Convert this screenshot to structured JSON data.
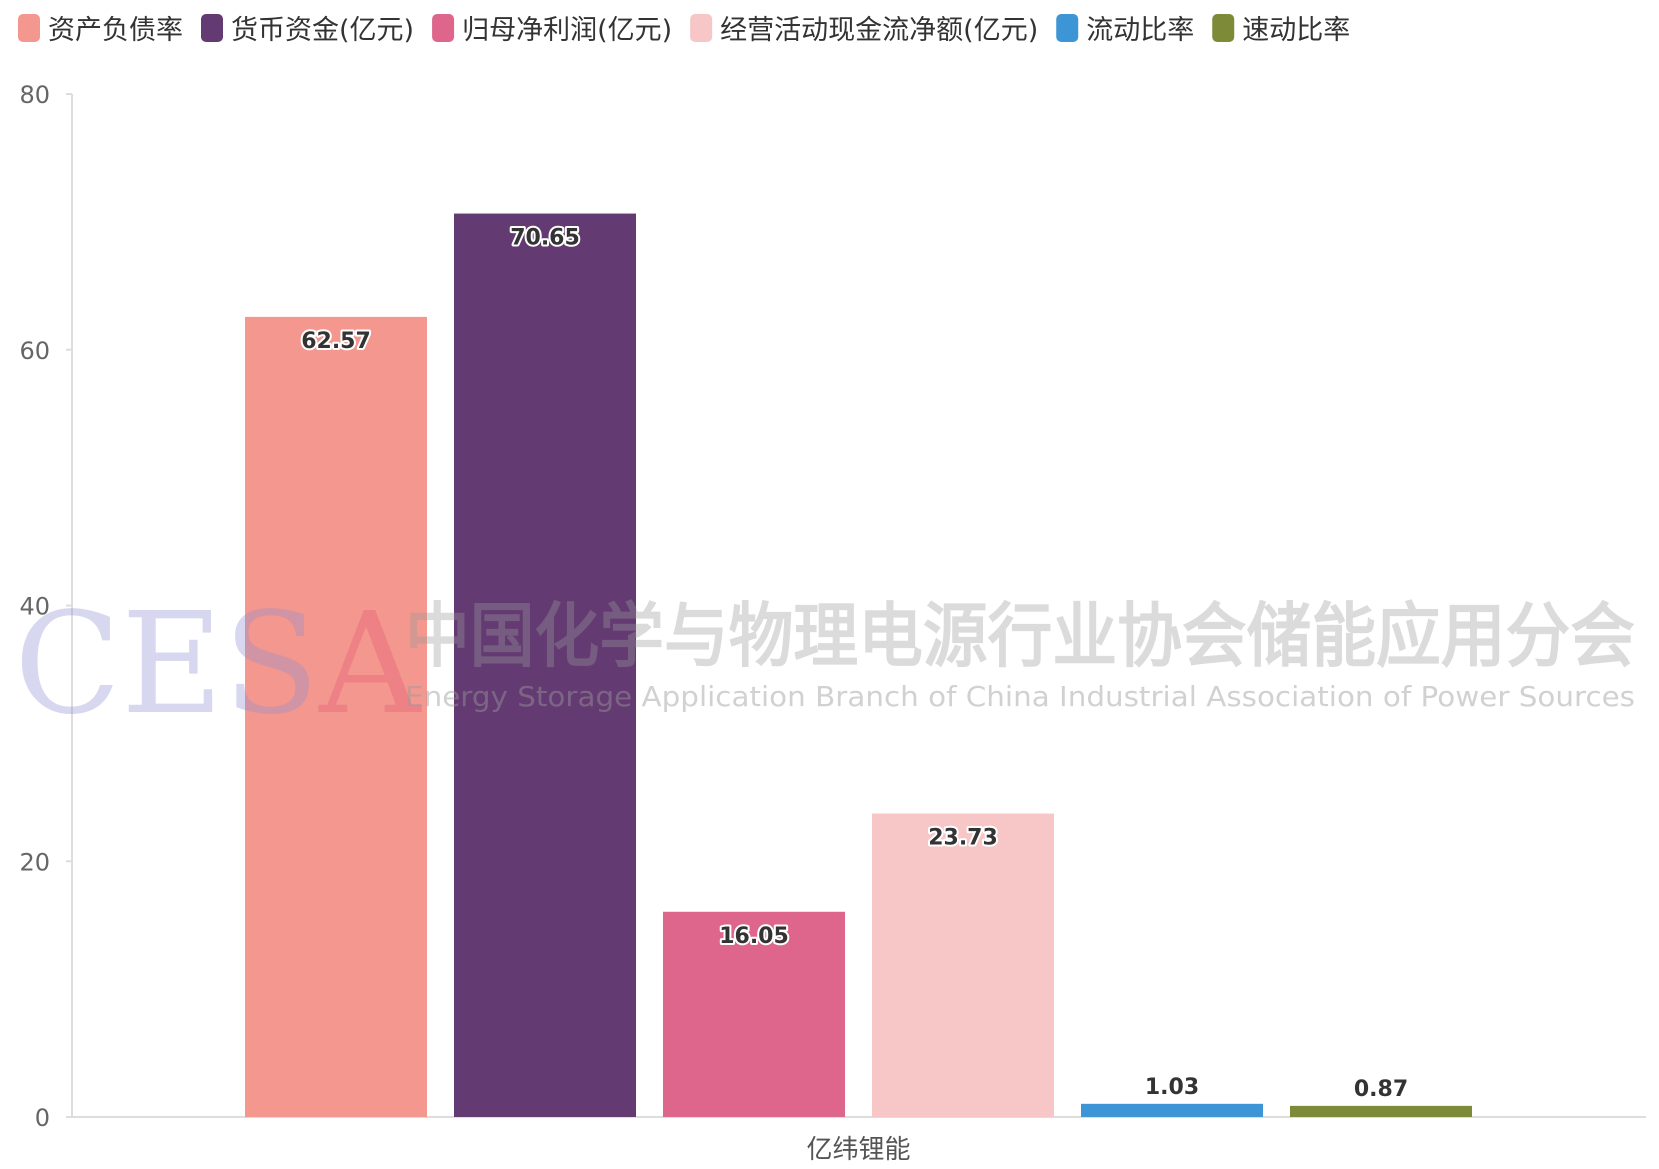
{
  "chart_data": {
    "type": "bar",
    "categories": [
      "亿纬锂能"
    ],
    "series": [
      {
        "name": "资产负债率",
        "values": [
          62.57
        ],
        "color": "#f4978e"
      },
      {
        "name": "货币资金(亿元)",
        "values": [
          70.65
        ],
        "color": "#633a72"
      },
      {
        "name": "归母净利润(亿元)",
        "values": [
          16.05
        ],
        "color": "#de668d"
      },
      {
        "name": "经营活动现金流净额(亿元)",
        "values": [
          23.73
        ],
        "color": "#f7c6c7"
      },
      {
        "name": "流动比率",
        "values": [
          1.03
        ],
        "color": "#3d95d6"
      },
      {
        "name": "速动比率",
        "values": [
          0.87
        ],
        "color": "#7d8b39"
      }
    ],
    "yticks": [
      "0",
      "20",
      "40",
      "60",
      "80"
    ],
    "ylim": [
      0,
      80
    ],
    "legend_position": "top-left",
    "grid": false
  },
  "watermark": {
    "logo_text": "CESA",
    "cn_text": "中国化学与物理电源行业协会储能应用分会",
    "en_text": "Energy Storage Application Branch of China Industrial Association of Power Sources"
  }
}
